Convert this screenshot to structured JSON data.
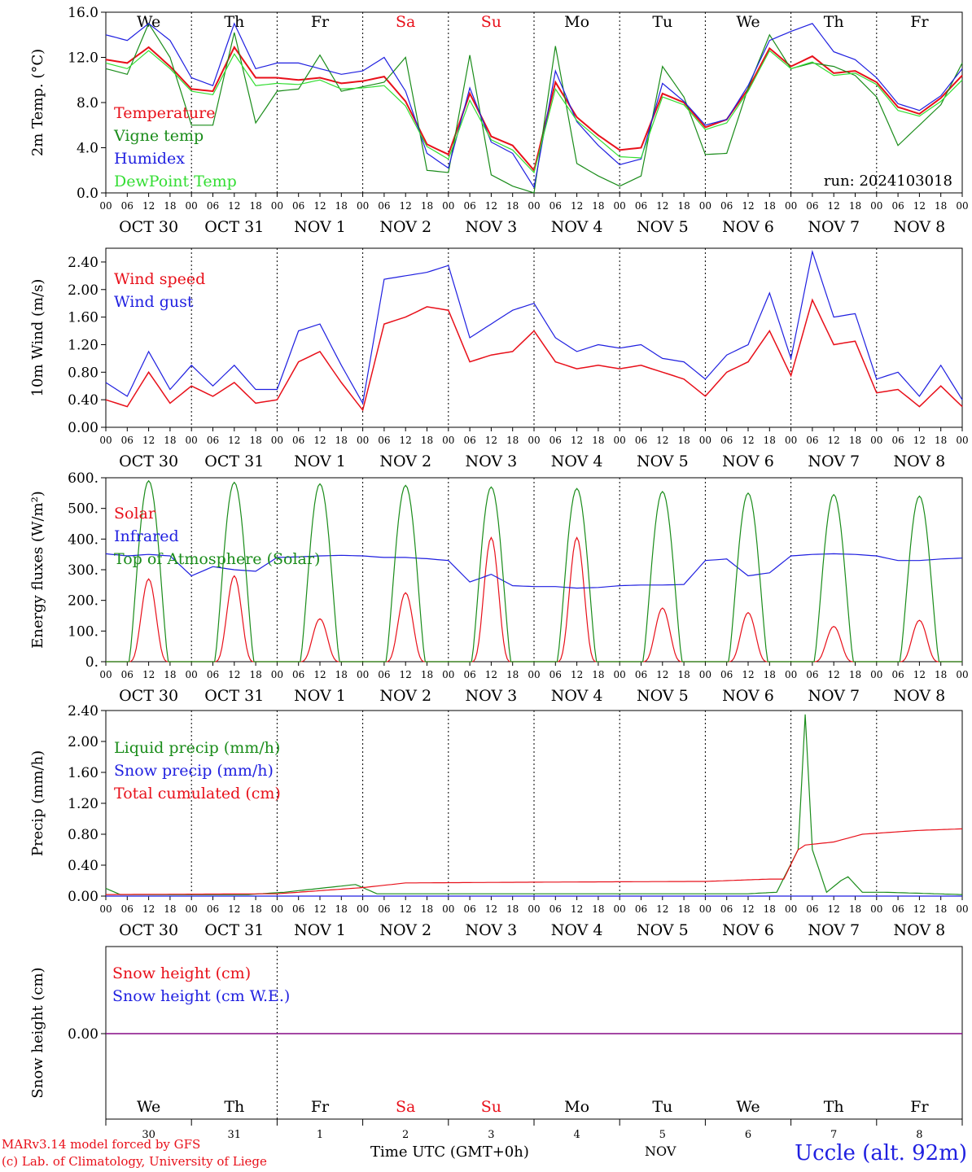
{
  "run_label": "run: 2024103018",
  "footer": {
    "model_line": "MARv3.14 model forced by GFS",
    "credit_line": "(c) Lab. of Climatology, University of Liege",
    "time_axis_label": "Time UTC (GMT+0h)",
    "month_label": "NOV",
    "station": "Uccle (alt. 92m)"
  },
  "colors": {
    "red": "#e8101a",
    "green": "#1a8c1a",
    "blue": "#1f1fe0",
    "lightgreen": "#33dd33",
    "purple": "#800080"
  },
  "days": {
    "weekdays": [
      "We",
      "Th",
      "Fr",
      "Sa",
      "Su",
      "Mo",
      "Tu",
      "We",
      "Th",
      "Fr"
    ],
    "weekend_flags": [
      false,
      false,
      false,
      true,
      true,
      false,
      false,
      false,
      false,
      false
    ],
    "date_labels": [
      "OCT 30",
      "OCT 31",
      "NOV  1",
      "NOV  2",
      "NOV  3",
      "NOV  4",
      "NOV  5",
      "NOV  6",
      "NOV  7",
      "NOV  8"
    ],
    "day_numbers": [
      "30",
      "31",
      "1",
      "2",
      "3",
      "4",
      "5",
      "6",
      "7",
      "8"
    ],
    "hour_labels": [
      "00",
      "06",
      "12",
      "18"
    ],
    "final_hour_label": "00"
  },
  "chart_data": [
    {
      "type": "line",
      "ylabel": "2m Temp. (°C)",
      "ylim": [
        0,
        16
      ],
      "yticks": [
        "0.0",
        "4.0",
        "8.0",
        "12.0",
        "16.0"
      ],
      "x_hours": [
        0,
        6,
        12,
        18,
        24,
        30,
        36,
        42,
        48,
        54,
        60,
        66,
        72,
        78,
        84,
        90,
        96,
        102,
        108,
        114,
        120,
        126,
        132,
        138,
        144,
        150,
        156,
        162,
        168,
        174,
        180,
        186,
        192,
        198,
        204,
        210,
        216,
        222,
        228,
        234,
        240
      ],
      "series": [
        {
          "name": "Temperature",
          "color": "red",
          "values": [
            11.8,
            11.5,
            12.9,
            11.2,
            9.2,
            9.0,
            12.9,
            10.2,
            10.2,
            10.0,
            10.2,
            9.7,
            9.9,
            10.3,
            8.1,
            4.3,
            3.4,
            8.8,
            5.0,
            4.2,
            2.0,
            9.8,
            6.7,
            5.1,
            3.8,
            4.0,
            8.8,
            8.0,
            5.8,
            6.5,
            9.2,
            12.8,
            11.2,
            12.1,
            10.6,
            10.8,
            9.8,
            7.6,
            7.0,
            8.4,
            10.4
          ]
        },
        {
          "name": "Vigne temp",
          "color": "green",
          "values": [
            11.0,
            10.5,
            15.0,
            12.0,
            6.0,
            6.0,
            14.2,
            6.2,
            9.0,
            9.2,
            12.2,
            9.0,
            9.4,
            9.8,
            12.0,
            2.0,
            1.8,
            12.2,
            1.6,
            0.6,
            0.0,
            13.0,
            2.6,
            1.5,
            0.6,
            1.5,
            11.2,
            8.5,
            3.4,
            3.5,
            9.3,
            14.0,
            11.0,
            11.5,
            11.2,
            10.4,
            8.5,
            4.2,
            6.0,
            7.8,
            11.5
          ]
        },
        {
          "name": "Humidex",
          "color": "blue",
          "values": [
            14.0,
            13.5,
            15.0,
            13.5,
            10.2,
            9.5,
            15.0,
            11.0,
            11.5,
            11.5,
            11.0,
            10.5,
            10.8,
            12.0,
            9.0,
            3.5,
            2.2,
            9.3,
            4.5,
            3.5,
            0.5,
            10.8,
            6.3,
            4.2,
            2.5,
            3.0,
            9.7,
            8.1,
            6.0,
            6.5,
            9.5,
            13.5,
            14.3,
            15.0,
            12.5,
            11.8,
            10.2,
            7.9,
            7.3,
            8.6,
            11.0
          ]
        },
        {
          "name": "DewPoint Temp",
          "color": "lightgreen",
          "values": [
            11.5,
            11.0,
            12.6,
            11.0,
            9.0,
            8.7,
            12.3,
            9.5,
            9.7,
            9.6,
            10.0,
            9.2,
            9.3,
            9.5,
            7.7,
            4.1,
            3.0,
            8.2,
            4.7,
            3.8,
            1.8,
            9.2,
            6.4,
            4.8,
            3.2,
            3.1,
            8.5,
            7.8,
            5.6,
            6.2,
            9.0,
            12.6,
            11.0,
            11.6,
            10.4,
            10.6,
            9.6,
            7.3,
            6.8,
            8.1,
            10.0
          ]
        }
      ]
    },
    {
      "type": "line",
      "ylabel": "10m Wind (m/s)",
      "ylim": [
        0,
        2.6
      ],
      "yticks": [
        "0.00",
        "0.40",
        "0.80",
        "1.20",
        "1.60",
        "2.00",
        "2.40"
      ],
      "x_hours": [
        0,
        6,
        12,
        18,
        24,
        30,
        36,
        42,
        48,
        54,
        60,
        66,
        72,
        78,
        84,
        90,
        96,
        102,
        108,
        114,
        120,
        126,
        132,
        138,
        144,
        150,
        156,
        162,
        168,
        174,
        180,
        186,
        192,
        198,
        204,
        210,
        216,
        222,
        228,
        234,
        240
      ],
      "series": [
        {
          "name": "Wind speed",
          "color": "red",
          "values": [
            0.4,
            0.3,
            0.8,
            0.35,
            0.6,
            0.45,
            0.65,
            0.35,
            0.4,
            0.95,
            1.1,
            0.65,
            0.25,
            1.5,
            1.6,
            1.75,
            1.7,
            0.95,
            1.05,
            1.1,
            1.4,
            0.95,
            0.85,
            0.9,
            0.85,
            0.9,
            0.8,
            0.7,
            0.45,
            0.8,
            0.95,
            1.4,
            0.75,
            1.85,
            1.2,
            1.25,
            0.5,
            0.55,
            0.3,
            0.6,
            0.3
          ]
        },
        {
          "name": "Wind gust",
          "color": "blue",
          "values": [
            0.65,
            0.45,
            1.1,
            0.55,
            0.9,
            0.6,
            0.9,
            0.55,
            0.55,
            1.4,
            1.5,
            0.9,
            0.35,
            2.15,
            2.2,
            2.25,
            2.35,
            1.3,
            1.5,
            1.7,
            1.8,
            1.3,
            1.1,
            1.2,
            1.15,
            1.2,
            1.0,
            0.95,
            0.7,
            1.05,
            1.2,
            1.95,
            1.0,
            2.55,
            1.6,
            1.65,
            0.7,
            0.8,
            0.45,
            0.9,
            0.4
          ]
        }
      ]
    },
    {
      "type": "line",
      "ylabel": "Energy fluxes (W/m²)",
      "ylim": [
        0,
        600
      ],
      "yticks": [
        "0.",
        "100.",
        "200.",
        "300.",
        "400.",
        "500.",
        "600."
      ],
      "series": [
        {
          "name": "Solar",
          "color": "red",
          "daily_peaks": [
            270,
            280,
            140,
            225,
            405,
            405,
            175,
            160,
            115,
            135
          ]
        },
        {
          "name": "Infrared",
          "color": "blue",
          "x_hours": [
            0,
            6,
            12,
            18,
            24,
            30,
            36,
            42,
            48,
            54,
            60,
            66,
            72,
            78,
            84,
            90,
            96,
            102,
            108,
            114,
            120,
            126,
            132,
            138,
            144,
            150,
            156,
            162,
            168,
            174,
            180,
            186,
            192,
            198,
            204,
            210,
            216,
            222,
            228,
            234,
            240
          ],
          "values": [
            352,
            345,
            350,
            345,
            280,
            310,
            300,
            295,
            340,
            342,
            345,
            347,
            345,
            340,
            340,
            336,
            330,
            260,
            285,
            248,
            245,
            245,
            240,
            242,
            248,
            250,
            250,
            252,
            330,
            335,
            280,
            290,
            345,
            350,
            352,
            350,
            345,
            330,
            330,
            335,
            338
          ]
        },
        {
          "name": "Top of Atmosphere (Solar)",
          "color": "green",
          "daily_peaks": [
            590,
            585,
            580,
            575,
            570,
            565,
            555,
            550,
            545,
            540
          ]
        }
      ]
    },
    {
      "type": "line",
      "ylabel": "Precip (mm/h)",
      "ylim": [
        0,
        2.4
      ],
      "yticks": [
        "0.00",
        "0.40",
        "0.80",
        "1.20",
        "1.60",
        "2.00",
        "2.40"
      ],
      "series": [
        {
          "name": "Liquid precip (mm/h)",
          "color": "green",
          "points": [
            [
              0,
              0.1
            ],
            [
              4,
              0.02
            ],
            [
              40,
              0.02
            ],
            [
              50,
              0.05
            ],
            [
              70,
              0.15
            ],
            [
              76,
              0.03
            ],
            [
              180,
              0.03
            ],
            [
              188,
              0.05
            ],
            [
              194,
              0.6
            ],
            [
              196,
              2.35
            ],
            [
              198,
              0.6
            ],
            [
              202,
              0.05
            ],
            [
              206,
              0.2
            ],
            [
              208,
              0.25
            ],
            [
              212,
              0.05
            ],
            [
              218,
              0.05
            ],
            [
              240,
              0.02
            ]
          ]
        },
        {
          "name": "Snow precip (mm/h)",
          "color": "blue",
          "points": [
            [
              0,
              0.0
            ],
            [
              240,
              0.0
            ]
          ]
        },
        {
          "name": "Total cumulated (cm)",
          "color": "red",
          "points": [
            [
              0,
              0.02
            ],
            [
              48,
              0.03
            ],
            [
              60,
              0.07
            ],
            [
              72,
              0.11
            ],
            [
              84,
              0.17
            ],
            [
              120,
              0.18
            ],
            [
              168,
              0.19
            ],
            [
              186,
              0.22
            ],
            [
              190,
              0.22
            ],
            [
              194,
              0.6
            ],
            [
              196,
              0.66
            ],
            [
              204,
              0.7
            ],
            [
              212,
              0.8
            ],
            [
              228,
              0.85
            ],
            [
              240,
              0.87
            ]
          ]
        }
      ]
    },
    {
      "type": "line",
      "ylabel": "Snow height (cm)",
      "yticks": [
        "0.00"
      ],
      "series": [
        {
          "name": "Snow height (cm)",
          "color": "red",
          "values": [
            0,
            0
          ]
        },
        {
          "name": "Snow height (cm W.E.)",
          "color": "blue",
          "values": [
            0,
            0
          ]
        }
      ]
    }
  ]
}
